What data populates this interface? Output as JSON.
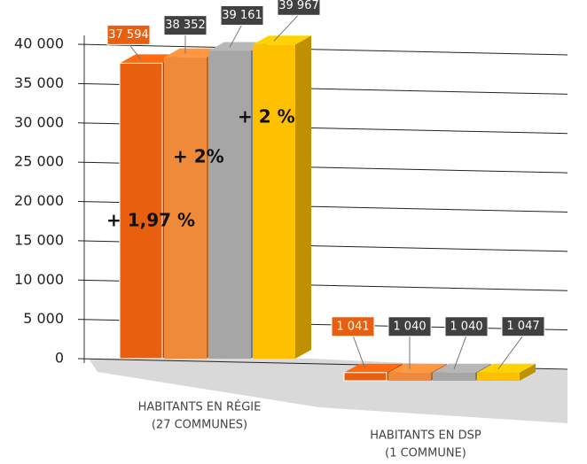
{
  "chart_data": {
    "type": "bar3d",
    "categories": [
      [
        "HABITANTS EN RÉGIE",
        "(27 COMMUNES)"
      ],
      [
        "HABITANTS EN DSP",
        "(1 COMMUNE)"
      ]
    ],
    "series": [
      {
        "color": "#e8600f",
        "values": [
          37594,
          1041
        ],
        "value_labels": [
          "37 594",
          "1 041"
        ]
      },
      {
        "color": "#ef8a3a",
        "values": [
          38352,
          1040
        ],
        "value_labels": [
          "38 352",
          "1 040"
        ]
      },
      {
        "color": "#a6a6a6",
        "values": [
          39161,
          1040
        ],
        "value_labels": [
          "39 161",
          "1 040"
        ]
      },
      {
        "color": "#ffc000",
        "values": [
          39967,
          1047
        ],
        "value_labels": [
          "39 967",
          "1 047"
        ]
      }
    ],
    "ylim": [
      0,
      40000
    ],
    "yticks": [
      0,
      {
        "value": 5000,
        "label": "5 000"
      },
      {
        "value": 10000,
        "label": "10 000"
      },
      {
        "value": 15000,
        "label": "15 000"
      },
      {
        "value": 20000,
        "label": "20 000"
      },
      {
        "value": 25000,
        "label": "25 000"
      },
      {
        "value": 30000,
        "label": "30 000"
      },
      {
        "value": 35000,
        "label": "35 000"
      },
      {
        "value": 40000,
        "label": "40 000"
      }
    ],
    "grid": true,
    "annotations": [
      "+ 1,97 %",
      "+ 2%",
      "+ 2 %"
    ]
  }
}
